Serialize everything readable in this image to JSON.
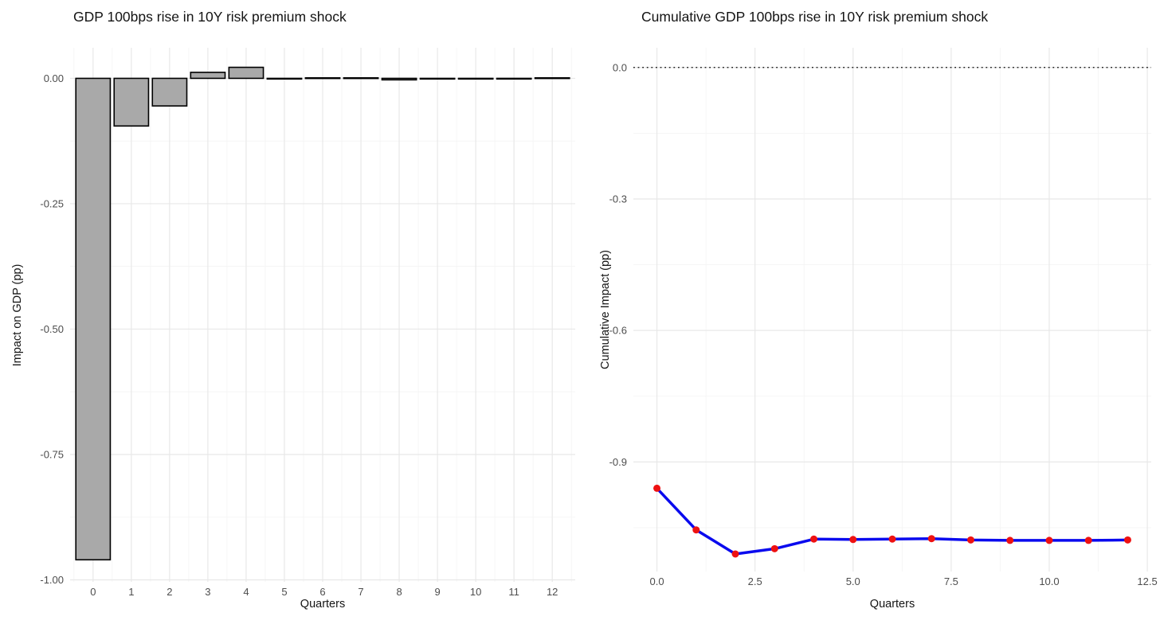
{
  "theme": {
    "background": "#ffffff",
    "grid_major": "#e8e8e8",
    "grid_minor": "#f4f4f4",
    "tick_text_color": "#4d4d4d",
    "title_text_color": "#141414"
  },
  "chart_data": [
    {
      "type": "bar",
      "title": "GDP 100bps rise in 10Y risk premium shock",
      "xlabel": "Quarters",
      "ylabel": "Impact on GDP (pp)",
      "x": [
        0,
        1,
        2,
        3,
        4,
        5,
        6,
        7,
        8,
        9,
        10,
        11,
        12
      ],
      "values": [
        -0.96,
        -0.095,
        -0.055,
        0.012,
        0.022,
        -0.001,
        0.001,
        0.001,
        -0.003,
        -0.001,
        0.0,
        0.0,
        0.001
      ],
      "xlim": [
        -0.6,
        12.6
      ],
      "ylim": [
        -1.004,
        0.061
      ],
      "x_ticks": [
        0,
        1,
        2,
        3,
        4,
        5,
        6,
        7,
        8,
        9,
        10,
        11,
        12
      ],
      "x_tick_labels": [
        "0",
        "1",
        "2",
        "3",
        "4",
        "5",
        "6",
        "7",
        "8",
        "9",
        "10",
        "11",
        "12"
      ],
      "x_minor": [
        -0.5,
        0.5,
        1.5,
        2.5,
        3.5,
        4.5,
        5.5,
        6.5,
        7.5,
        8.5,
        9.5,
        10.5,
        11.5,
        12.5
      ],
      "y_ticks": [
        0,
        -0.25,
        -0.5,
        -0.75,
        -1.0
      ],
      "y_tick_labels": [
        "0.00",
        "-0.25",
        "-0.50",
        "-0.75",
        "-1.00"
      ],
      "y_minor": [
        -0.125,
        -0.375,
        -0.625,
        -0.875
      ],
      "grid": true,
      "legend": "none",
      "style": {
        "bar_fill": "#a9a9a9",
        "bar_stroke": "#000000",
        "bar_rel_width": 0.9,
        "bar_stroke_width": 1.6
      }
    },
    {
      "type": "line",
      "title": "Cumulative GDP 100bps rise in 10Y risk premium shock",
      "xlabel": "Quarters",
      "ylabel": "Cumulative Impact (pp)",
      "x": [
        0,
        1,
        2,
        3,
        4,
        5,
        6,
        7,
        8,
        9,
        10,
        11,
        12
      ],
      "values": [
        -0.96,
        -1.055,
        -1.11,
        -1.098,
        -1.076,
        -1.077,
        -1.076,
        -1.075,
        -1.078,
        -1.079,
        -1.079,
        -1.079,
        -1.078
      ],
      "xlim": [
        -0.6,
        12.6
      ],
      "ylim": [
        -1.15,
        0.045
      ],
      "x_ticks": [
        0,
        2.5,
        5,
        7.5,
        10,
        12.5
      ],
      "x_tick_labels": [
        "0.0",
        "2.5",
        "5.0",
        "7.5",
        "10.0",
        "12.5"
      ],
      "x_minor": [
        1.25,
        3.75,
        6.25,
        8.75,
        11.25
      ],
      "y_ticks": [
        0,
        -0.3,
        -0.6,
        -0.9
      ],
      "y_tick_labels": [
        "0.0",
        "-0.3",
        "-0.6",
        "-0.9"
      ],
      "y_minor": [
        -0.15,
        -0.45,
        -0.75,
        -1.05
      ],
      "hline": {
        "y": 0,
        "linetype": "dotted",
        "color": "#000000"
      },
      "grid": true,
      "legend": "none",
      "style": {
        "line_color": "#0a0aee",
        "point_color": "#ee1111",
        "line_width": 3.5,
        "point_radius": 4.5
      }
    }
  ]
}
